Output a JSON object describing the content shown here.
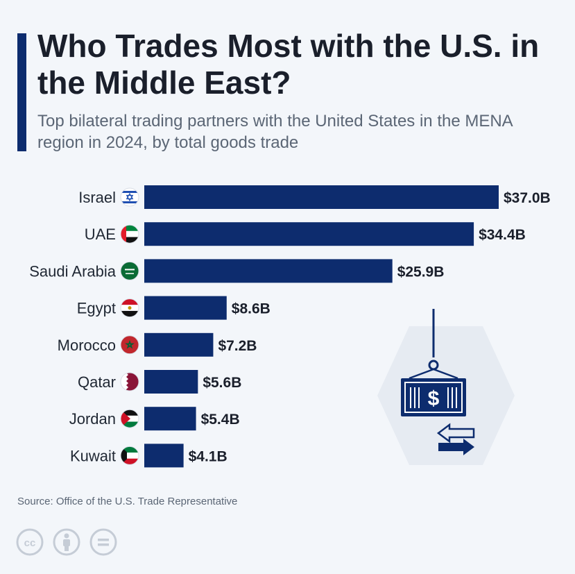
{
  "header": {
    "title": "Who Trades Most with the U.S. in the Middle East?",
    "subtitle": "Top bilateral trading partners with the United States in the MENA region in 2024, by total goods trade"
  },
  "chart_data": {
    "type": "bar",
    "orientation": "horizontal",
    "categories": [
      "Israel",
      "UAE",
      "Saudi Arabia",
      "Egypt",
      "Morocco",
      "Qatar",
      "Jordan",
      "Kuwait"
    ],
    "values": [
      37.0,
      34.4,
      25.9,
      8.6,
      7.2,
      5.6,
      5.4,
      4.1
    ],
    "value_labels": [
      "$37.0B",
      "$34.4B",
      "$25.9B",
      "$8.6B",
      "$7.2B",
      "$5.6B",
      "$5.4B",
      "$4.1B"
    ],
    "title": "",
    "xlabel": "",
    "ylabel": "",
    "xlim": [
      0,
      37.0
    ],
    "grid": false,
    "bar_color": "#0d2c6e"
  },
  "footer": {
    "source": "Source: Office of the U.S. Trade Representative",
    "license_icons": [
      "cc-icon",
      "by-icon",
      "nd-icon"
    ]
  },
  "colors": {
    "accent": "#0d2c6e",
    "background": "#f3f6fa"
  },
  "illustration": {
    "icon": "shipping-container-dollar-icon",
    "label": "$"
  }
}
